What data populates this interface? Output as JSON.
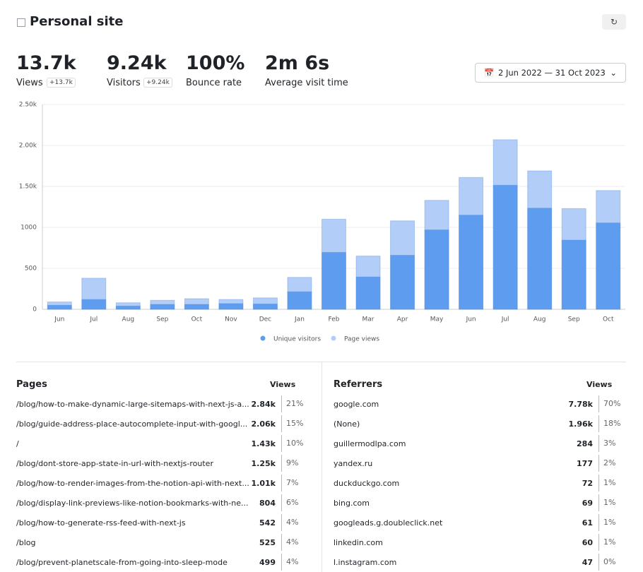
{
  "header": {
    "title": "Personal site"
  },
  "stats": [
    {
      "value": "13.7k",
      "label": "Views",
      "badge": "+13.7k"
    },
    {
      "value": "9.24k",
      "label": "Visitors",
      "badge": "+9.24k"
    },
    {
      "value": "100%",
      "label": "Bounce rate"
    },
    {
      "value": "2m 6s",
      "label": "Average visit time"
    }
  ],
  "date_range": "2 Jun 2022 — 31 Oct 2023",
  "chart_data": {
    "type": "bar",
    "categories": [
      "Jun",
      "Jul",
      "Aug",
      "Sep",
      "Oct",
      "Nov",
      "Dec",
      "Jan",
      "Feb",
      "Mar",
      "Apr",
      "May",
      "Jun",
      "Jul",
      "Aug",
      "Sep",
      "Oct"
    ],
    "series": [
      {
        "name": "Unique visitors",
        "color": "#5e9cf0",
        "values": [
          50,
          120,
          40,
          60,
          60,
          70,
          65,
          215,
          695,
          395,
          660,
          970,
          1150,
          1515,
          1235,
          845,
          1055
        ]
      },
      {
        "name": "Page views",
        "color": "#b2cef8",
        "values": [
          90,
          380,
          80,
          110,
          130,
          120,
          140,
          390,
          1100,
          650,
          1080,
          1330,
          1610,
          2070,
          1690,
          1230,
          1450
        ]
      }
    ],
    "ylim": [
      0,
      2500
    ],
    "yticks": [
      0,
      500,
      1000,
      {
        "value": 1500,
        "label": "1.50k"
      },
      {
        "value": 2000,
        "label": "2.00k"
      },
      {
        "value": 2500,
        "label": "2.50k"
      }
    ],
    "grid": true
  },
  "pages": {
    "title": "Pages",
    "column": "Views",
    "rows": [
      [
        "/blog/how-to-make-dynamic-large-sitemaps-with-next-js-a...",
        "2.84k",
        "21%"
      ],
      [
        "/blog/guide-address-place-autocomplete-input-with-googl...",
        "2.06k",
        "15%"
      ],
      [
        "/",
        "1.43k",
        "10%"
      ],
      [
        "/blog/dont-store-app-state-in-url-with-nextjs-router",
        "1.25k",
        "9%"
      ],
      [
        "/blog/how-to-render-images-from-the-notion-api-with-next...",
        "1.01k",
        "7%"
      ],
      [
        "/blog/display-link-previews-like-notion-bookmarks-with-ne...",
        "804",
        "6%"
      ],
      [
        "/blog/how-to-generate-rss-feed-with-next-js",
        "542",
        "4%"
      ],
      [
        "/blog",
        "525",
        "4%"
      ],
      [
        "/blog/prevent-planetscale-from-going-into-sleep-mode",
        "499",
        "4%"
      ]
    ]
  },
  "referrers": {
    "title": "Referrers",
    "column": "Views",
    "rows": [
      [
        "google.com",
        "7.78k",
        "70%"
      ],
      [
        "(None)",
        "1.96k",
        "18%"
      ],
      [
        "guillermodlpa.com",
        "284",
        "3%"
      ],
      [
        "yandex.ru",
        "177",
        "2%"
      ],
      [
        "duckduckgo.com",
        "72",
        "1%"
      ],
      [
        "bing.com",
        "69",
        "1%"
      ],
      [
        "googleads.g.doubleclick.net",
        "61",
        "1%"
      ],
      [
        "linkedin.com",
        "60",
        "1%"
      ],
      [
        "l.instagram.com",
        "47",
        "0%"
      ]
    ]
  }
}
